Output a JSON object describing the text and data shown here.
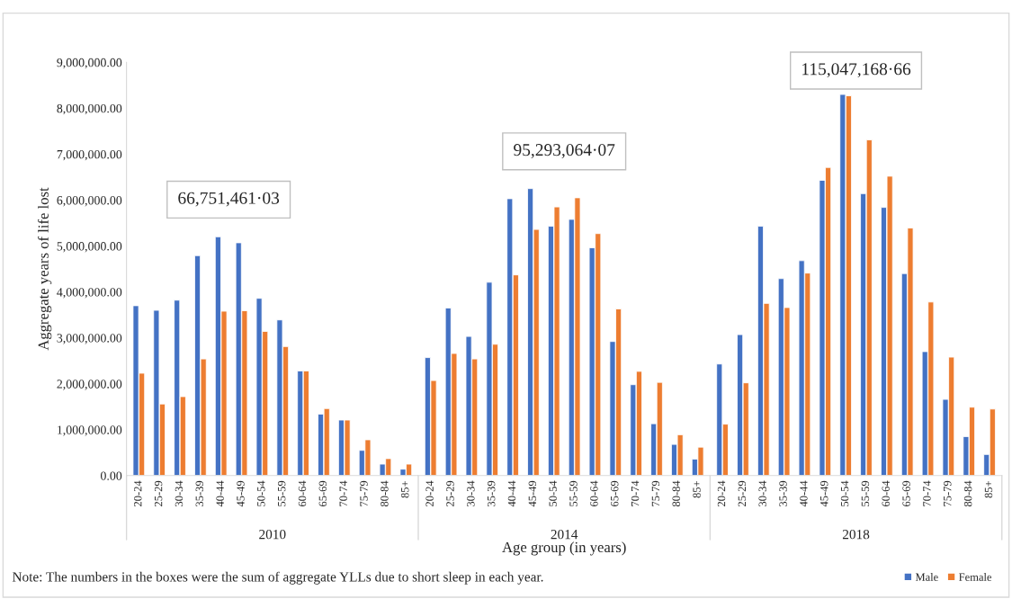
{
  "chart_data": [
    {
      "type": "bar",
      "title": "66,751,461·03",
      "xlabel": "2010",
      "ylabel": "Aggregate years of life lost",
      "legend": "bottom right",
      "categories": [
        "20-24",
        "25-29",
        "30-34",
        "35-39",
        "40-44",
        "45-49",
        "50-54",
        "55-59",
        "60-64",
        "65-69",
        "70-74",
        "75-79",
        "80-84",
        "85+"
      ],
      "series": [
        {
          "name": "Male",
          "color": "#4472c4",
          "values": [
            3700000,
            3600000,
            3820000,
            4790000,
            5200000,
            5070000,
            3860000,
            3390000,
            2280000,
            1340000,
            1210000,
            550000,
            250000,
            140000
          ]
        },
        {
          "name": "Female",
          "color": "#ed7d31",
          "values": [
            2230000,
            1560000,
            1720000,
            2540000,
            3580000,
            3590000,
            3140000,
            2810000,
            2280000,
            1460000,
            1210000,
            780000,
            370000,
            250000
          ]
        }
      ],
      "ylim": [
        0,
        9000000
      ],
      "yticks": [
        {
          "value": 0,
          "label": "0.00"
        },
        {
          "value": 1000000,
          "label": "1,000,000.00"
        },
        {
          "value": 2000000,
          "label": "2,000,000.00"
        },
        {
          "value": 3000000,
          "label": "3,000,000.00"
        },
        {
          "value": 4000000,
          "label": "4,000,000.00"
        },
        {
          "value": 5000000,
          "label": "5,000,000.00"
        },
        {
          "value": 6000000,
          "label": "6,000,000.00"
        },
        {
          "value": 7000000,
          "label": "7,000,000.00"
        },
        {
          "value": 8000000,
          "label": "8,000,000.00"
        },
        {
          "value": 9000000,
          "label": "9,000,000.00"
        }
      ],
      "annotations": [
        "Note: The numbers in the boxes were the sum of aggregate YLLs due to short sleep in each year."
      ]
    },
    {
      "type": "bar",
      "title": "95,293,064·07",
      "xlabel": "2014",
      "tick_labels": "x",
      "categories": [
        "20-24",
        "25-29",
        "30-34",
        "35-39",
        "40-44",
        "45-49",
        "50-54",
        "55-59",
        "60-64",
        "65-69",
        "70-74",
        "75-79",
        "80-84",
        "85+"
      ],
      "series": [
        {
          "color": "#4472c4",
          "values": [
            2570000,
            3650000,
            3030000,
            4210000,
            6030000,
            6250000,
            5430000,
            5580000,
            4960000,
            2920000,
            1980000,
            1130000,
            680000,
            360000
          ]
        },
        {
          "color": "#ed7d31",
          "values": [
            2070000,
            2660000,
            2540000,
            2860000,
            4370000,
            5360000,
            5850000,
            6050000,
            5270000,
            3630000,
            2270000,
            2030000,
            890000,
            620000
          ]
        }
      ],
      "ylim": [
        0,
        9000000
      ],
      "annotations": [
        "Age group (in years)"
      ]
    },
    {
      "type": "bar",
      "title": "115,047,168·66",
      "xlabel": "2018",
      "tick_labels": "x",
      "categories": [
        "20-24",
        "25-29",
        "30-34",
        "35-39",
        "40-44",
        "45-49",
        "50-54",
        "55-59",
        "60-64",
        "65-69",
        "70-74",
        "75-79",
        "80-84",
        "85+"
      ],
      "series": [
        {
          "color": "#4472c4",
          "values": [
            2430000,
            3070000,
            5430000,
            4290000,
            4680000,
            6430000,
            8300000,
            6140000,
            5840000,
            4400000,
            2700000,
            1660000,
            850000,
            460000
          ]
        },
        {
          "color": "#ed7d31",
          "values": [
            1120000,
            2020000,
            3750000,
            3660000,
            4410000,
            6710000,
            8270000,
            7310000,
            6520000,
            5390000,
            3780000,
            2580000,
            1490000,
            1450000
          ]
        }
      ],
      "ylim": [
        0,
        9000000
      ]
    }
  ]
}
